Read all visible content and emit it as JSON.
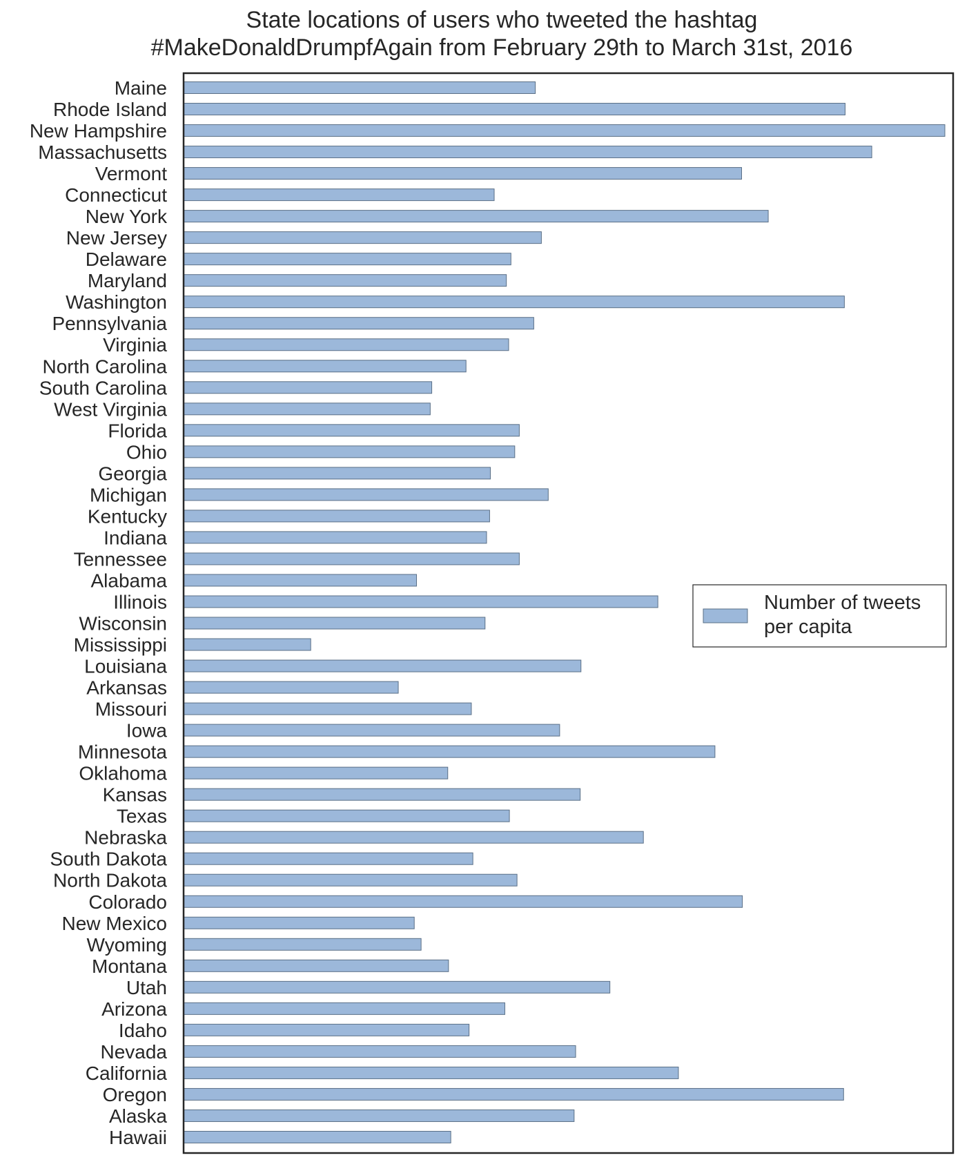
{
  "colors": {
    "bar_fill": "#9cb8da",
    "bar_stroke": "#5a6f86",
    "frame": "#262626",
    "text": "#262626",
    "background": "#ffffff"
  },
  "chart_data": {
    "type": "bar",
    "orientation": "horizontal",
    "title_lines": [
      "State locations of users who tweeted the hashtag",
      "#MakeDonaldDrumpfAgain from February 29th to March 31st, 2016"
    ],
    "xlabel": "",
    "ylabel": "",
    "x_ticks_shown": false,
    "grid": false,
    "legend": {
      "placement": "center-right",
      "label_lines": [
        "Number of tweets",
        "per capita"
      ]
    },
    "series": [
      {
        "name": "Number of tweets per capita"
      }
    ],
    "xlim": [
      0,
      100
    ],
    "categories": [
      "Maine",
      "Rhode Island",
      "New Hampshire",
      "Massachusetts",
      "Vermont",
      "Connecticut",
      "New York",
      "New Jersey",
      "Delaware",
      "Maryland",
      "Washington",
      "Pennsylvania",
      "Virginia",
      "North Carolina",
      "South Carolina",
      "West Virginia",
      "Florida",
      "Ohio",
      "Georgia",
      "Michigan",
      "Kentucky",
      "Indiana",
      "Tennessee",
      "Alabama",
      "Illinois",
      "Wisconsin",
      "Mississippi",
      "Louisiana",
      "Arkansas",
      "Missouri",
      "Iowa",
      "Minnesota",
      "Oklahoma",
      "Kansas",
      "Texas",
      "Nebraska",
      "South Dakota",
      "North Dakota",
      "Colorado",
      "New Mexico",
      "Wyoming",
      "Montana",
      "Utah",
      "Arizona",
      "Idaho",
      "Nevada",
      "California",
      "Oregon",
      "Alaska",
      "Hawaii"
    ],
    "values": [
      46.2,
      86.9,
      100,
      90.4,
      73.3,
      40.8,
      76.8,
      47.0,
      43.0,
      42.4,
      86.8,
      46.0,
      42.7,
      37.1,
      32.6,
      32.4,
      44.1,
      43.5,
      40.3,
      47.9,
      40.2,
      39.8,
      44.1,
      30.6,
      62.3,
      39.6,
      16.7,
      52.2,
      28.2,
      37.8,
      49.4,
      69.8,
      34.7,
      52.1,
      42.8,
      60.4,
      38.0,
      43.8,
      73.4,
      30.3,
      31.2,
      34.8,
      56.0,
      42.2,
      37.5,
      51.5,
      65.0,
      86.7,
      51.3,
      35.1
    ]
  }
}
